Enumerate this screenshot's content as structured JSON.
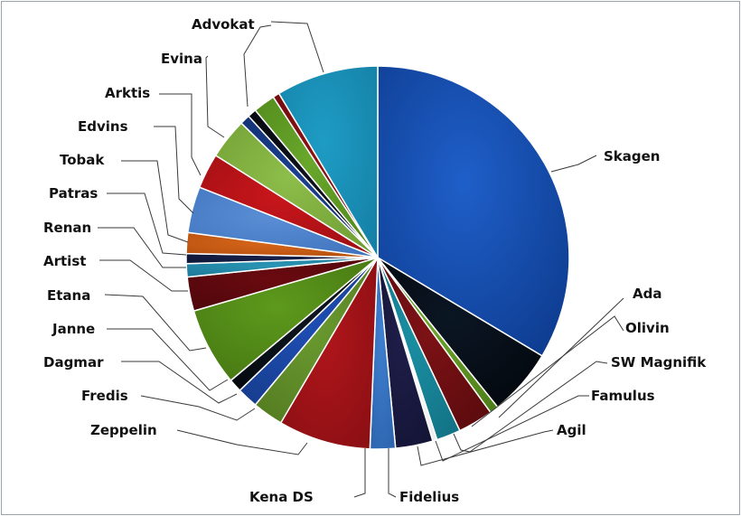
{
  "chart_data": {
    "type": "pie",
    "title": "",
    "units": "approx. share of 360°",
    "slices": [
      {
        "label": "Skagen",
        "value": 36.2,
        "color": "#1f5fc9",
        "color2": "#0d3b8e"
      },
      {
        "label": "Ada",
        "value": 6.1,
        "color": "#0b1624",
        "color2": "#03070c"
      },
      {
        "label": "Olivin",
        "value": 0.8,
        "color": "#6da52a",
        "color2": "#4e7f19"
      },
      {
        "label": "SW Magnifik",
        "value": 3.2,
        "color": "#7d1216",
        "color2": "#5b0b0e"
      },
      {
        "label": "Famulus",
        "value": 2.2,
        "color": "#1b8fa3",
        "color2": "#137285"
      },
      {
        "label": "Agil",
        "value": 0.4,
        "color": "#ffffff",
        "color2": "#eeeeee"
      },
      {
        "label": "Fidelius",
        "value": 3.4,
        "color": "#1e1e4a",
        "color2": "#141436"
      },
      {
        "label": "Kena DS",
        "value": 2.3,
        "color": "#3f7fcf",
        "color2": "#2c63ad"
      },
      {
        "label": "Zeppelin",
        "value": 8.4,
        "color": "#b0161b",
        "color2": "#8a0f13"
      },
      {
        "label": "Fredis",
        "value": 2.8,
        "color": "#6b9b30",
        "color2": "#527a20"
      },
      {
        "label": "Dagmar",
        "value": 1.9,
        "color": "#1f4fb5",
        "color2": "#163c8c"
      },
      {
        "label": "Janne",
        "value": 1.2,
        "color": "#0e1620",
        "color2": "#05090e"
      },
      {
        "label": "Etana",
        "value": 7.1,
        "color": "#5d9a1c",
        "color2": "#457512"
      },
      {
        "label": "Artist",
        "value": 3.1,
        "color": "#6a0a10",
        "color2": "#4d070b"
      },
      {
        "label": "Renan",
        "value": 1.2,
        "color": "#2a95b5",
        "color2": "#1e7896"
      },
      {
        "label": "Patras",
        "value": 0.9,
        "color": "#17204a",
        "color2": "#0e1533"
      },
      {
        "label": "Tobak",
        "value": 1.9,
        "color": "#d8661a",
        "color2": "#b24f0f"
      },
      {
        "label": "Edvins",
        "value": 4.2,
        "color": "#5a8fd6",
        "color2": "#3f73bd"
      },
      {
        "label": "Arktis",
        "value": 3.2,
        "color": "#c8161b",
        "color2": "#9c0f13"
      },
      {
        "label": "Evina",
        "value": 3.7,
        "color": "#8dbd4a",
        "color2": "#6f9c33"
      },
      {
        "label": "Advokat",
        "value": 0.9,
        "color": "#1a3f8f",
        "color2": "#11306e"
      },
      {
        "label": "",
        "value": 0.8,
        "color": "#0c121c",
        "color2": "#05080d"
      },
      {
        "label": "",
        "value": 2.0,
        "color": "#69a72c",
        "color2": "#4f8619"
      },
      {
        "label": "",
        "value": 0.6,
        "color": "#8e1216",
        "color2": "#6b0c0f"
      },
      {
        "label": "",
        "value": 9.3,
        "color": "#1e9cc4",
        "color2": "#1580a6"
      }
    ],
    "legend": "none (callout labels)"
  },
  "labels": {
    "skagen": "Skagen",
    "ada": "Ada",
    "olivin": "Olivin",
    "sw_magnifik": "SW Magnifik",
    "famulus": "Famulus",
    "agil": "Agil",
    "fidelius": "Fidelius",
    "kena_ds": "Kena DS",
    "zeppelin": "Zeppelin",
    "fredis": "Fredis",
    "dagmar": "Dagmar",
    "janne": "Janne",
    "etana": "Etana",
    "artist": "Artist",
    "renan": "Renan",
    "patras": "Patras",
    "tobak": "Tobak",
    "edvins": "Edvins",
    "arktis": "Arktis",
    "evina": "Evina",
    "advokat": "Advokat"
  }
}
